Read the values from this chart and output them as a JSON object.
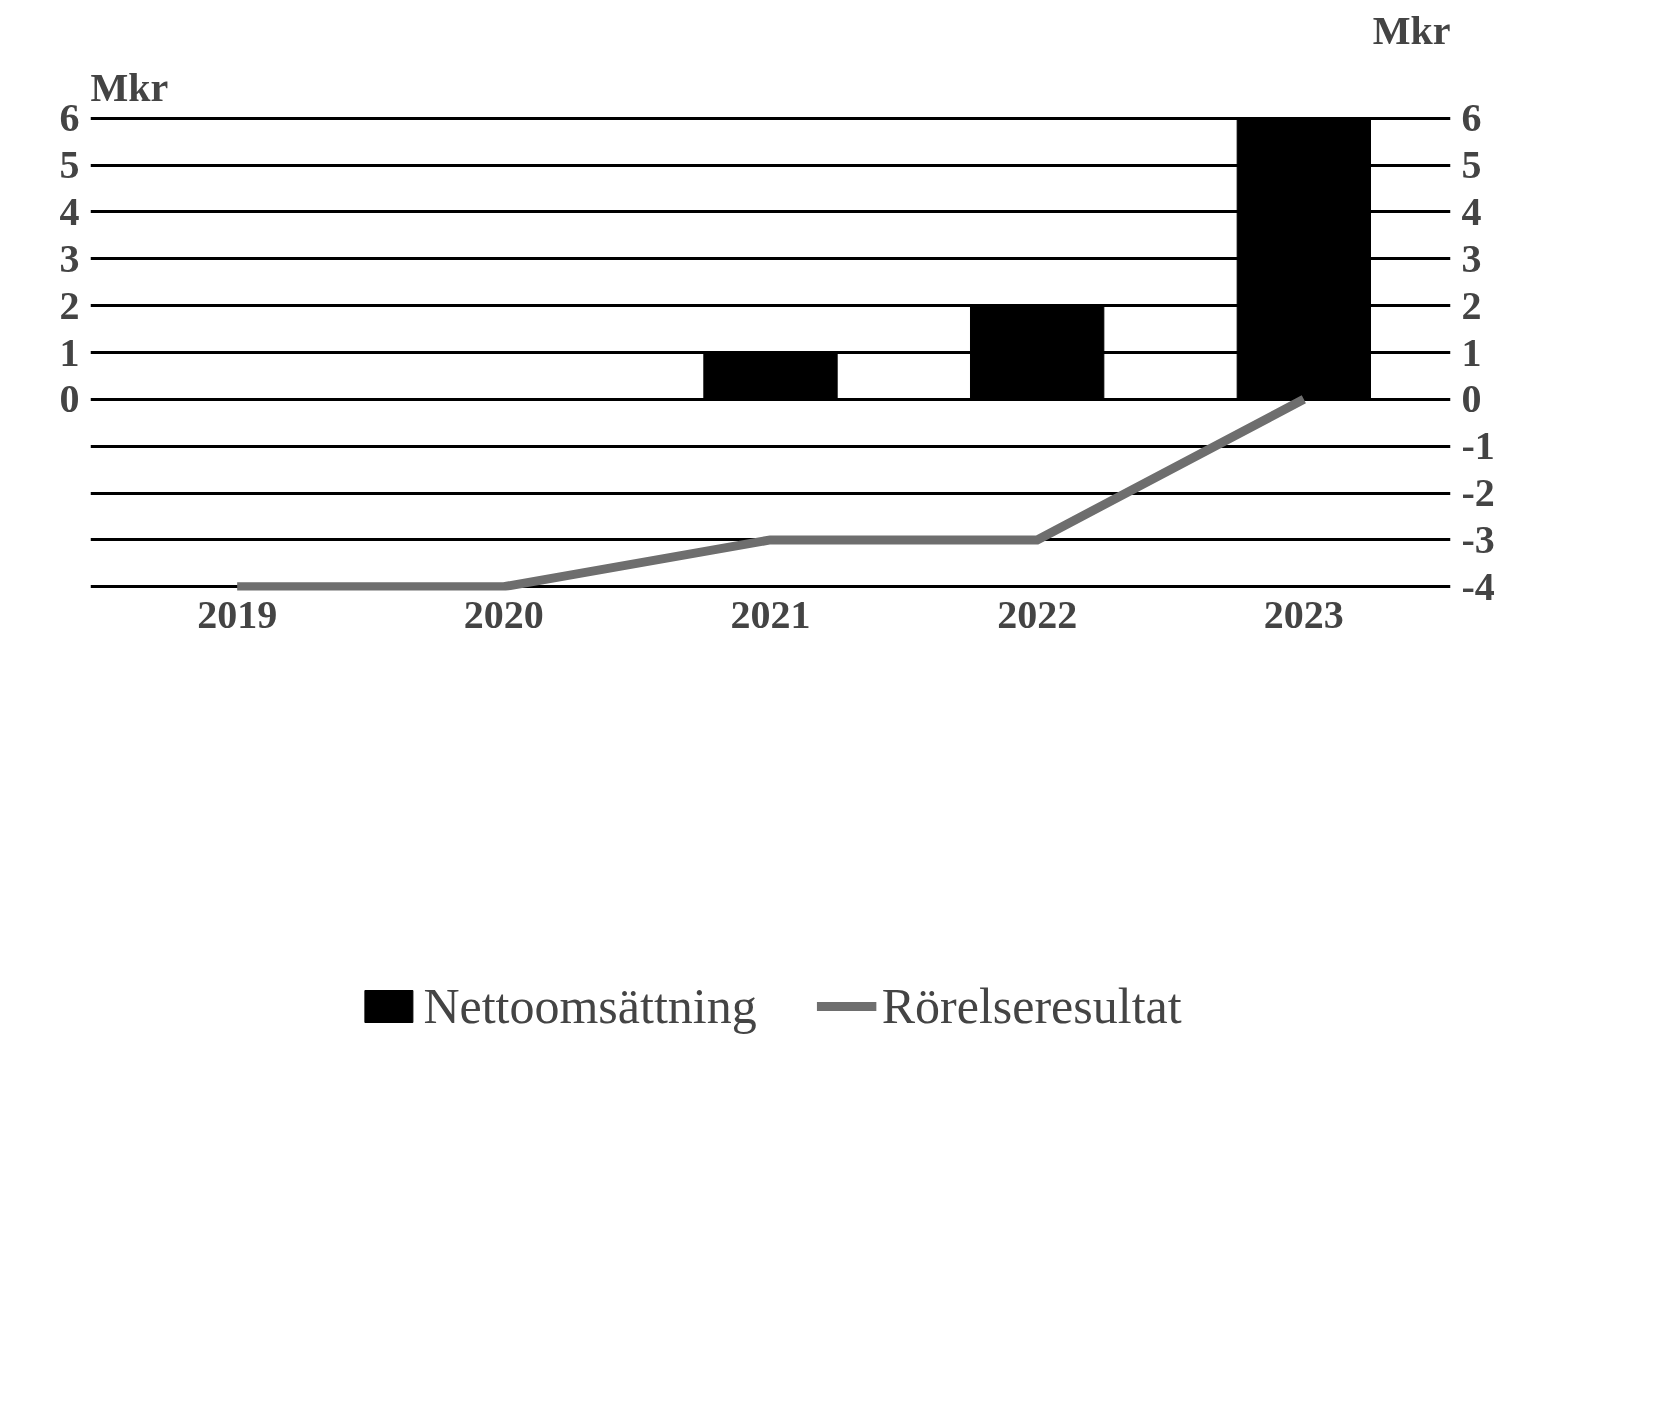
{
  "chart_data": {
    "type": "bar",
    "categories": [
      "2019",
      "2020",
      "2021",
      "2022",
      "2023"
    ],
    "series": [
      {
        "name": "Nettoomsättning",
        "color": "#000000",
        "values": [
          0,
          0,
          1,
          2,
          6
        ]
      },
      {
        "name": "Rörelseresultat",
        "type": "line",
        "color": "#6e6e6e",
        "values": [
          -4,
          -4,
          -3,
          -3,
          0
        ]
      }
    ],
    "ylabel": "Mkr",
    "y2label": "Mkr",
    "ylim": [
      -4,
      6
    ],
    "yticks": [
      {
        "value": -4,
        "label": null
      },
      {
        "value": -3,
        "label": null
      },
      {
        "value": -2,
        "label": null
      },
      {
        "value": -1,
        "label": null
      },
      0,
      1,
      2,
      3,
      4,
      5,
      6
    ],
    "y2lim": [
      -4,
      6
    ],
    "y2ticks": [
      -4,
      -3,
      -2,
      -1,
      0,
      1,
      2,
      3,
      4,
      5,
      6
    ],
    "grid": "y",
    "legend": "bottom",
    "marker": "none",
    "line_style": "solid"
  }
}
